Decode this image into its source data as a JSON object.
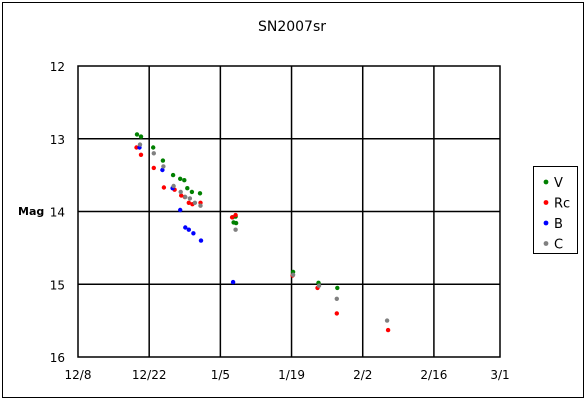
{
  "chart_data": {
    "type": "scatter",
    "title": "SN2007sr",
    "xlabel": "",
    "ylabel": "Mag",
    "x_tick_labels": [
      "12/8",
      "12/22",
      "1/5",
      "1/19",
      "2/2",
      "2/16",
      "3/1"
    ],
    "x_ticks_days": [
      0,
      14,
      28,
      42,
      56,
      70,
      83
    ],
    "xlim_days": [
      0,
      83
    ],
    "y_tick_labels": [
      "12",
      "13",
      "14",
      "15",
      "16"
    ],
    "ylim": [
      16,
      12
    ],
    "y_inverted": true,
    "grid": true,
    "legend_position": "right",
    "series": [
      {
        "name": "V",
        "color": "#008000",
        "points": [
          [
            11.6,
            12.94
          ],
          [
            12.4,
            12.97
          ],
          [
            14.8,
            13.12
          ],
          [
            16.7,
            13.3
          ],
          [
            18.7,
            13.5
          ],
          [
            20.1,
            13.55
          ],
          [
            20.9,
            13.57
          ],
          [
            21.5,
            13.68
          ],
          [
            22.4,
            13.73
          ],
          [
            24.0,
            13.75
          ],
          [
            30.4,
            14.08
          ],
          [
            31.0,
            14.07
          ],
          [
            30.6,
            14.15
          ],
          [
            31.1,
            14.16
          ],
          [
            42.3,
            14.83
          ],
          [
            47.3,
            14.98
          ],
          [
            51.0,
            15.05
          ]
        ]
      },
      {
        "name": "Rc",
        "color": "#ff0000",
        "points": [
          [
            11.5,
            13.12
          ],
          [
            12.4,
            13.22
          ],
          [
            14.9,
            13.4
          ],
          [
            16.9,
            13.67
          ],
          [
            19.0,
            13.7
          ],
          [
            20.3,
            13.78
          ],
          [
            21.0,
            13.8
          ],
          [
            21.8,
            13.88
          ],
          [
            22.5,
            13.9
          ],
          [
            24.1,
            13.88
          ],
          [
            30.3,
            14.08
          ],
          [
            31.0,
            14.05
          ],
          [
            42.2,
            14.88
          ],
          [
            47.1,
            15.05
          ],
          [
            50.9,
            15.4
          ],
          [
            61.0,
            15.63
          ]
        ]
      },
      {
        "name": "B",
        "color": "#0000ff",
        "points": [
          [
            12.1,
            13.12
          ],
          [
            16.6,
            13.43
          ],
          [
            18.6,
            13.68
          ],
          [
            20.1,
            13.98
          ],
          [
            21.1,
            14.22
          ],
          [
            21.8,
            14.25
          ],
          [
            22.7,
            14.3
          ],
          [
            24.2,
            14.4
          ],
          [
            30.5,
            14.97
          ]
        ]
      },
      {
        "name": "C",
        "color": "#808080",
        "points": [
          [
            12.2,
            13.08
          ],
          [
            14.9,
            13.2
          ],
          [
            16.8,
            13.38
          ],
          [
            18.8,
            13.65
          ],
          [
            20.2,
            13.73
          ],
          [
            21.1,
            13.8
          ],
          [
            22.0,
            13.82
          ],
          [
            23.0,
            13.88
          ],
          [
            24.1,
            13.92
          ],
          [
            31.0,
            14.25
          ],
          [
            42.3,
            14.87
          ],
          [
            47.4,
            15.02
          ],
          [
            50.9,
            15.2
          ],
          [
            60.8,
            15.5
          ]
        ]
      }
    ]
  }
}
